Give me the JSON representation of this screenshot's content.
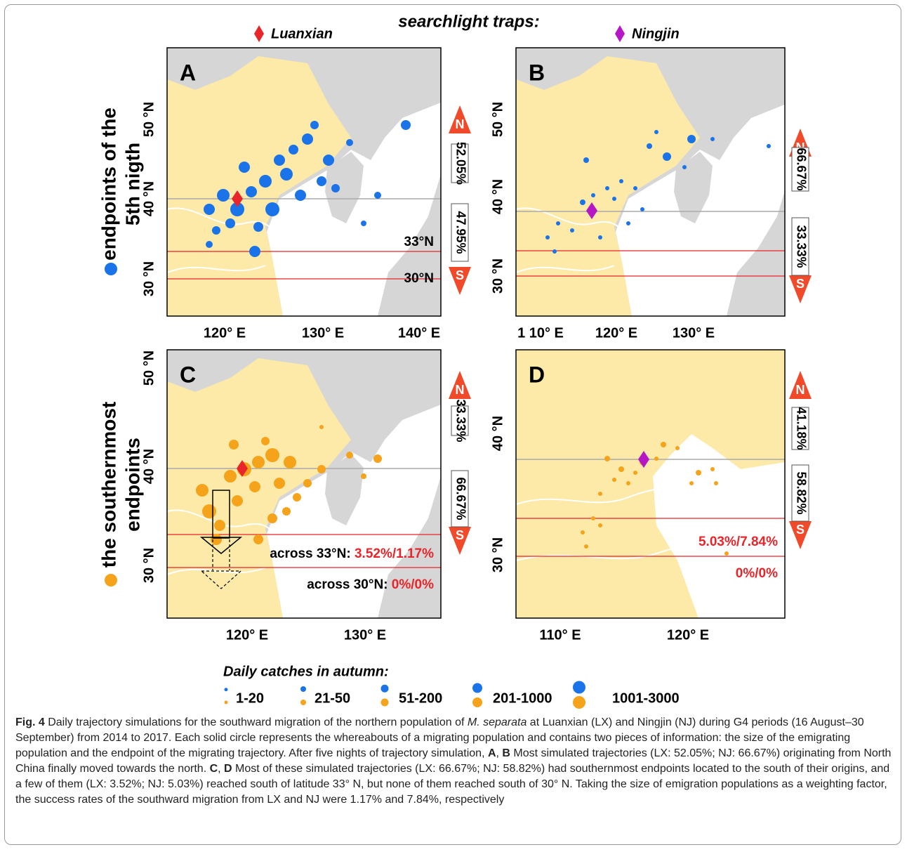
{
  "header": {
    "title": "searchlight traps:",
    "sites": [
      "Luanxian",
      "Ningjin"
    ]
  },
  "rows": [
    {
      "label": [
        "endpoints of the",
        "5th nigth"
      ]
    },
    {
      "label": [
        "the southernmost",
        "endpoints"
      ]
    }
  ],
  "panels": [
    {
      "label": "A",
      "yticks": [
        "50 °N",
        "40 °N",
        "30 °N"
      ],
      "xticks": [
        "120° E",
        "130° E",
        "140° E"
      ],
      "north_marker": "N",
      "north": "52.05%",
      "south": "47.95%",
      "south_marker": "S",
      "lines": [
        {
          "value": "33°N"
        },
        {
          "value": "30°N"
        }
      ]
    },
    {
      "label": "B",
      "yticks": [
        "50 °N",
        "40 °N",
        "30 °N"
      ],
      "xticks": [
        "1 10° E",
        "120° E",
        "130° E"
      ],
      "north_marker": "N",
      "north": "66.67%",
      "south": "33.33%",
      "south_marker": "S",
      "lines": []
    },
    {
      "label": "C",
      "yticks": [
        "50 °N",
        "40 °N",
        "30 °N"
      ],
      "xticks": [
        "120° E",
        "130° E"
      ],
      "north_marker": "N",
      "north": "33.33%",
      "south": "66.67%",
      "south_marker": "S",
      "lines": [
        {
          "prefix": "across 33°N:",
          "value": "3.52%/1.17%"
        },
        {
          "prefix": "across 30°N:",
          "value": "0%/0%"
        }
      ]
    },
    {
      "label": "D",
      "yticks": [
        "40 °N",
        "30 °N"
      ],
      "xticks": [
        "110° E",
        "120° E"
      ],
      "north_marker": "N",
      "north": "41.18%",
      "south": "58.82%",
      "south_marker": "S",
      "lines": [
        {
          "value": "5.03%/7.84%"
        },
        {
          "value": "0%/0%"
        }
      ]
    }
  ],
  "legend": {
    "title": "Daily catches in autumn:",
    "classes": [
      "1-20",
      "21-50",
      "51-200",
      "201-1000",
      "1001-3000"
    ]
  },
  "caption": {
    "label": "Fig. 4",
    "segments": [
      " Daily trajectory simulations for the southward migration of the northern population of ",
      "M. separata",
      " at Luanxian (LX) and Ningjin (NJ) during G4 periods (16 August–30 September) from 2014 to 2017. Each solid circle represents the whereabouts of a migrating population and contains two pieces of information: the size of the emigrating population and the endpoint of the migrating trajectory. After five nights of trajectory simulation, ",
      "A",
      ", ",
      "B",
      " Most simulated trajectories (LX: 52.05%; NJ: 66.67%) originating from North China finally moved towards the north. ",
      "C",
      ", ",
      "D",
      " Most of these simulated trajectories (LX: 66.67%; NJ: 58.82%) had southernmost endpoints located to the south of their origins, and a few of them (LX: 3.52%; NJ: 5.03%) reached south of latitude 33° N, but none of them reached south of 30° N. Taking the size of emigration populations as a weighting factor, the success rates of the southward migration from LX and NJ were 1.17% and 7.84%, respectively"
    ]
  }
}
